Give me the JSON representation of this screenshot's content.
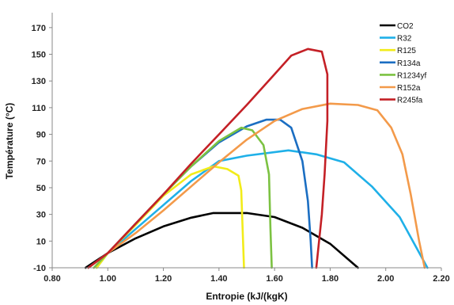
{
  "chart_data": {
    "type": "line",
    "title": "",
    "xlabel": "Entropie (kJ/(kgK)",
    "ylabel": "Température (°C)",
    "xlim": [
      0.8,
      2.2
    ],
    "ylim": [
      -10,
      180
    ],
    "xticks": [
      0.8,
      1.0,
      1.2,
      1.4,
      1.6,
      1.8,
      2.0,
      2.2
    ],
    "xtick_labels": [
      "0.80",
      "1.00",
      "1.20",
      "1.40",
      "1.60",
      "1.80",
      "2.00",
      "2.20"
    ],
    "yticks": [
      -10,
      10,
      30,
      50,
      70,
      90,
      110,
      130,
      150,
      170
    ],
    "ytick_labels": [
      "-10",
      "10",
      "30",
      "50",
      "70",
      "90",
      "110",
      "130",
      "150",
      "170"
    ],
    "grid": false,
    "legend_position": "top-right",
    "series": [
      {
        "name": "CO2",
        "color": "#000000",
        "x": [
          0.92,
          1.0,
          1.1,
          1.2,
          1.3,
          1.38,
          1.5,
          1.6,
          1.7,
          1.8,
          1.9
        ],
        "y": [
          -10,
          1,
          12,
          21,
          27.5,
          31,
          31,
          28,
          20,
          8,
          -10
        ]
      },
      {
        "name": "R32",
        "color": "#1fb0e8",
        "x": [
          0.96,
          1.0,
          1.1,
          1.2,
          1.3,
          1.4,
          1.5,
          1.65,
          1.75,
          1.85,
          1.95,
          2.05,
          2.15
        ],
        "y": [
          -10,
          1,
          19,
          37,
          55,
          70,
          74,
          78,
          75,
          69,
          51,
          28,
          -10
        ]
      },
      {
        "name": "R125",
        "color": "#f2ec1a",
        "x": [
          0.96,
          1.0,
          1.1,
          1.2,
          1.3,
          1.38,
          1.43,
          1.47,
          1.48,
          1.485,
          1.49
        ],
        "y": [
          -10,
          1,
          22,
          44,
          60,
          66,
          64,
          59,
          48,
          20,
          -10
        ]
      },
      {
        "name": "R134a",
        "color": "#1b6ec2",
        "x": [
          0.93,
          1.0,
          1.1,
          1.2,
          1.3,
          1.4,
          1.5,
          1.57,
          1.62,
          1.66,
          1.7,
          1.72,
          1.73,
          1.735
        ],
        "y": [
          -10,
          1,
          23,
          45,
          66,
          84,
          96,
          101,
          101,
          95,
          70,
          40,
          10,
          -10
        ]
      },
      {
        "name": "R1234yf",
        "color": "#7cc242",
        "x": [
          0.95,
          1.0,
          1.1,
          1.2,
          1.3,
          1.4,
          1.48,
          1.52,
          1.56,
          1.58,
          1.585,
          1.59
        ],
        "y": [
          -10,
          1,
          23,
          45,
          66,
          85,
          95,
          93,
          82,
          60,
          20,
          -10
        ]
      },
      {
        "name": "R152a",
        "color": "#f39a4a",
        "x": [
          0.93,
          1.0,
          1.1,
          1.2,
          1.3,
          1.4,
          1.5,
          1.6,
          1.7,
          1.8,
          1.9,
          1.97,
          2.02,
          2.06,
          2.09,
          2.12,
          2.14
        ],
        "y": [
          -10,
          1,
          16,
          33,
          51,
          69,
          86,
          100,
          109,
          113,
          112,
          108,
          95,
          75,
          45,
          10,
          -10
        ]
      },
      {
        "name": "R245fa",
        "color": "#c42026",
        "x": [
          0.93,
          1.0,
          1.1,
          1.2,
          1.3,
          1.4,
          1.5,
          1.6,
          1.66,
          1.72,
          1.77,
          1.79,
          1.79,
          1.78,
          1.77,
          1.76,
          1.75
        ],
        "y": [
          -10,
          1,
          23,
          45,
          68,
          90,
          112,
          135,
          149,
          154,
          152,
          135,
          100,
          60,
          30,
          10,
          -10
        ]
      }
    ]
  }
}
